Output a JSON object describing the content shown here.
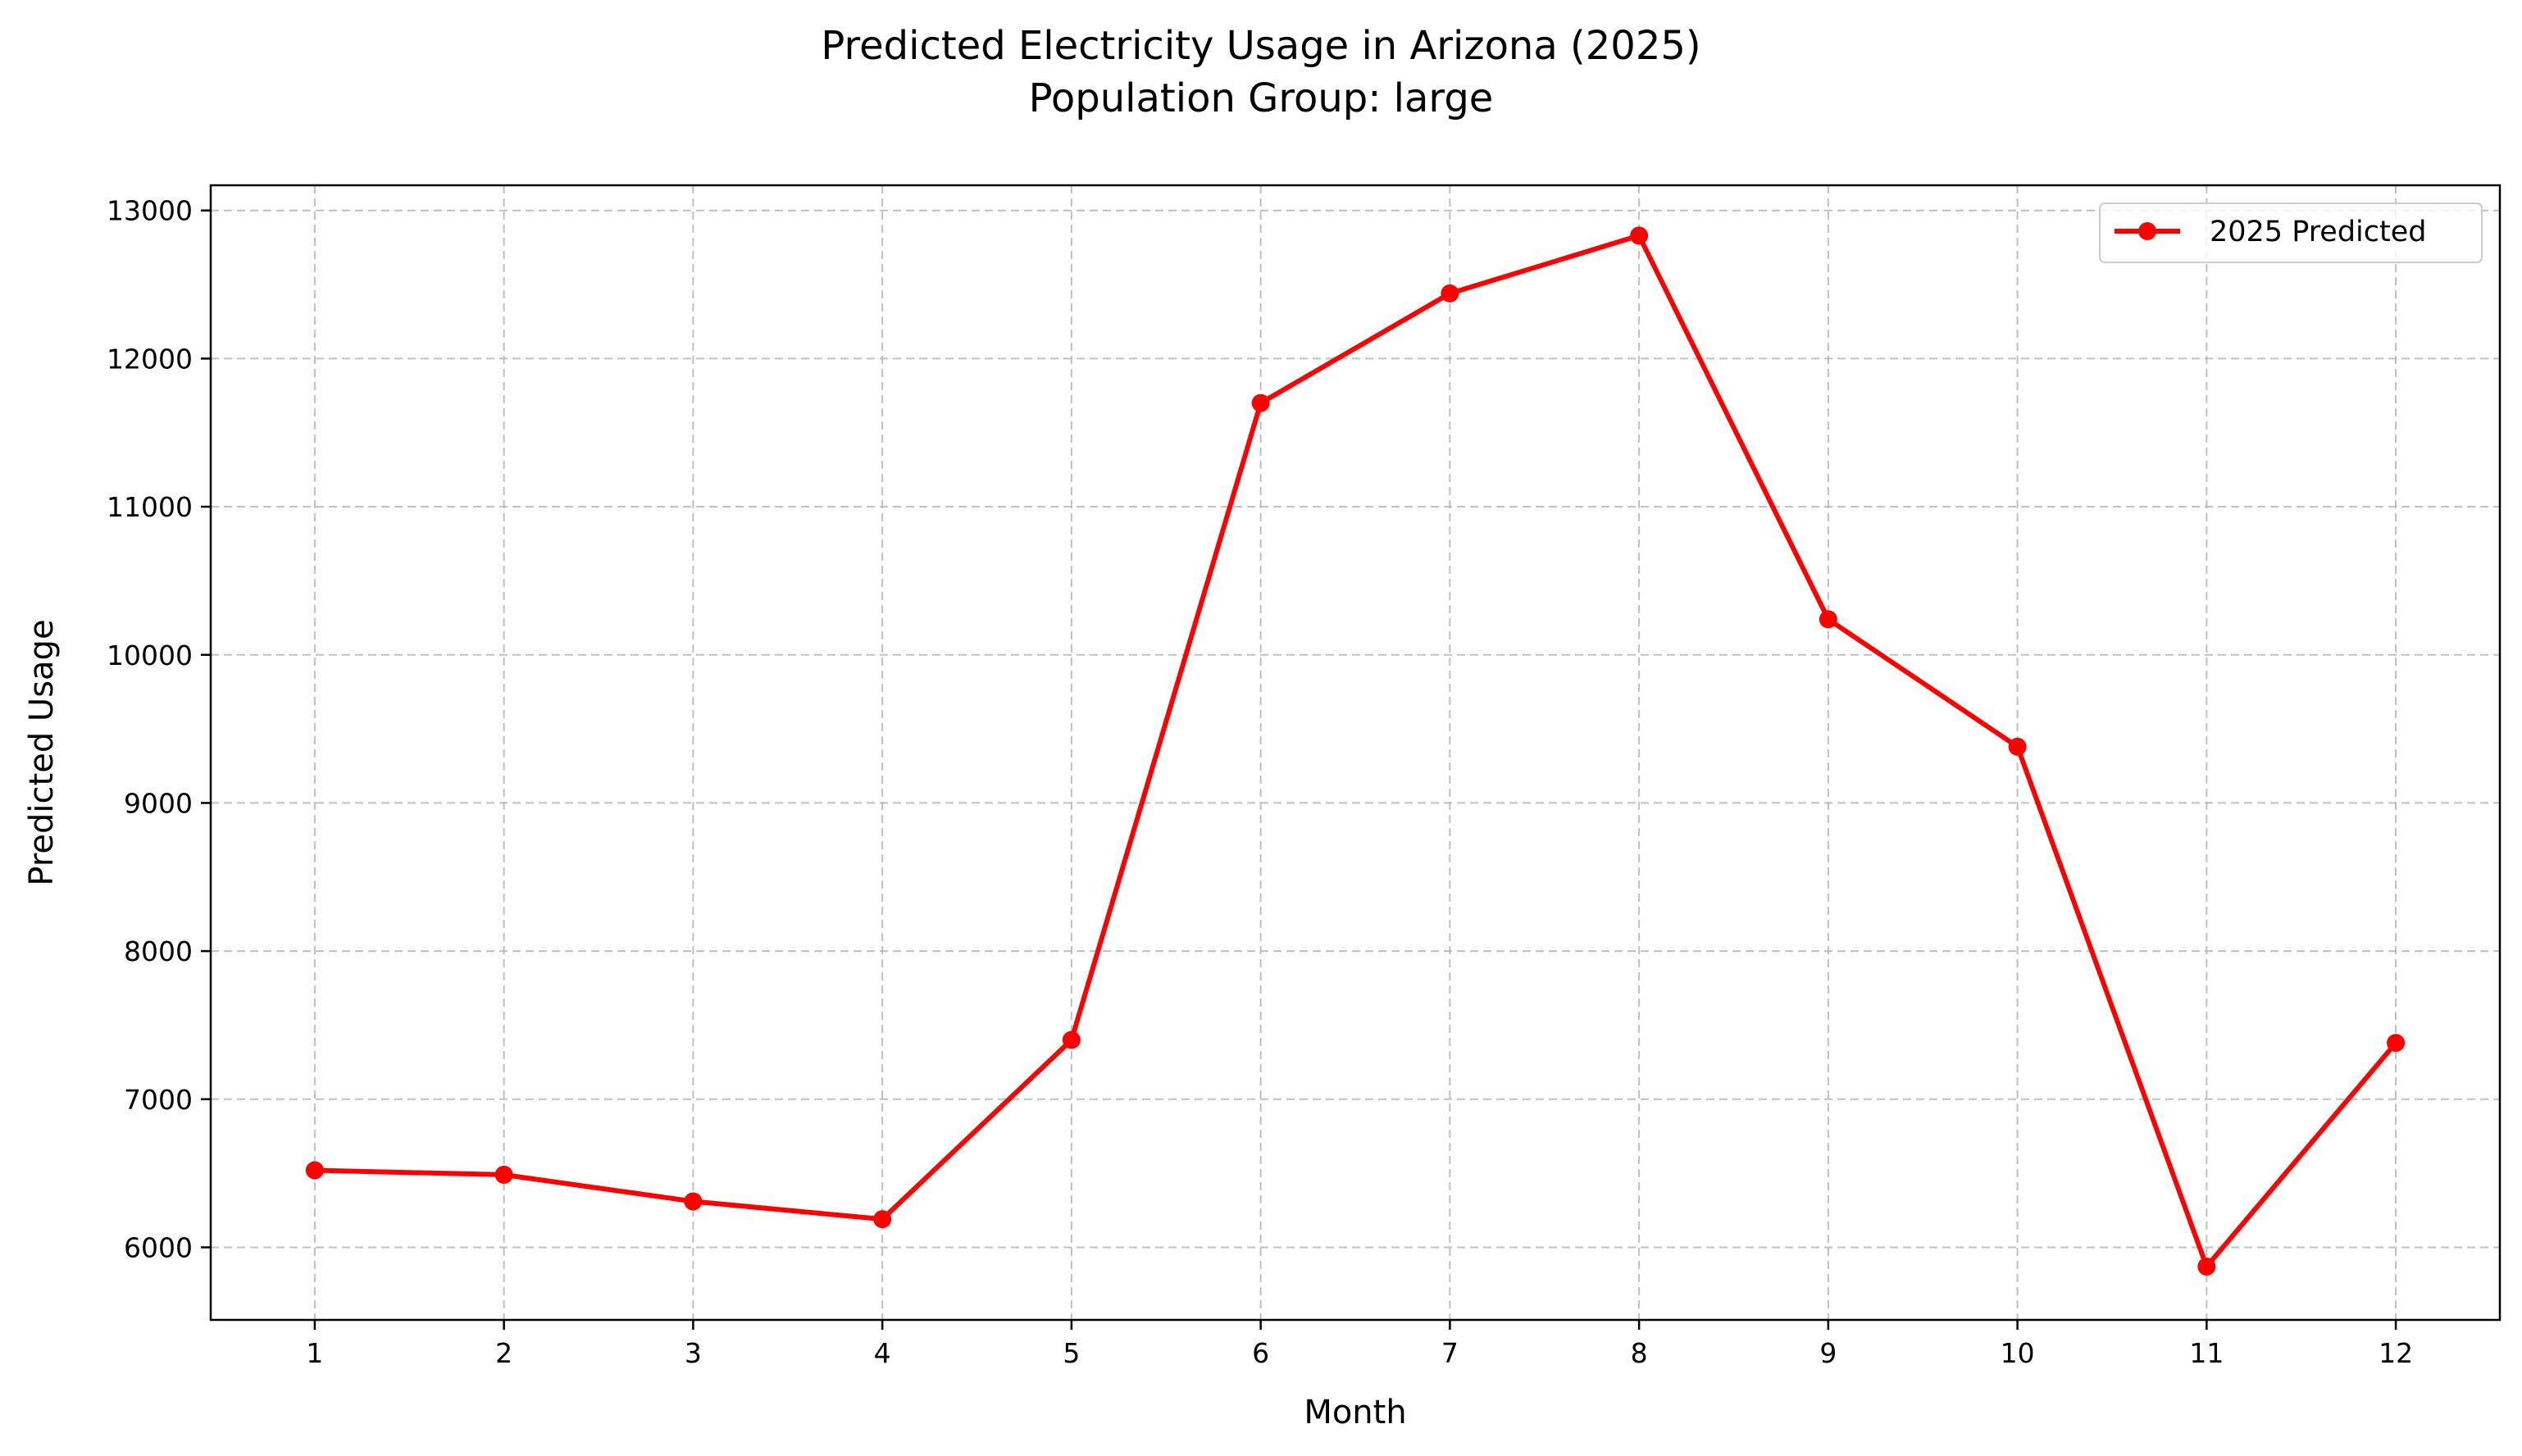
{
  "chart_data": {
    "type": "line",
    "title": "Predicted Electricity Usage in Arizona (2025)",
    "subtitle": "Population Group: large",
    "xlabel": "Month",
    "ylabel": "Predicted Usage",
    "x": [
      1,
      2,
      3,
      4,
      5,
      6,
      7,
      8,
      9,
      10,
      11,
      12
    ],
    "xlim": [
      0.45,
      12.55
    ],
    "ylim": [
      5510,
      13170
    ],
    "yticks": [
      6000,
      7000,
      8000,
      9000,
      10000,
      11000,
      12000,
      13000
    ],
    "grid": true,
    "legend_position": "top-right",
    "series": [
      {
        "name": "2025 Predicted",
        "color": "#ff0000",
        "marker": "circle",
        "values": [
          6520,
          6490,
          6310,
          6190,
          7400,
          11700,
          12440,
          12830,
          10240,
          9380,
          5870,
          7380
        ]
      }
    ]
  }
}
